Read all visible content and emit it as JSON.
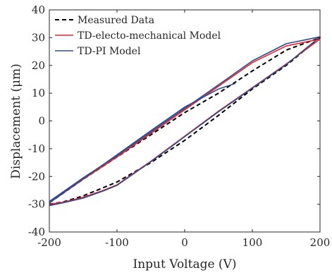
{
  "chart_data": {
    "type": "line",
    "xlabel": "Input Voltage (V)",
    "ylabel": "Displacement (μm)",
    "xlim": [
      -200,
      200
    ],
    "ylim": [
      -40,
      40
    ],
    "xticks": [
      "-200",
      "-100",
      "0",
      "100",
      "200"
    ],
    "yticks": [
      "40",
      "30",
      "20",
      "10",
      "0",
      "-10",
      "-20",
      "-30",
      "-40"
    ],
    "grid": false,
    "legend_position": "top-left",
    "series": [
      {
        "name": "Measured Data",
        "color": "#000000",
        "dash": true,
        "x": [
          -200,
          -180,
          -150,
          -120,
          -100,
          -50,
          0,
          50,
          100,
          150,
          200,
          200,
          150,
          100,
          50,
          0,
          -50,
          -100,
          -150,
          -200
        ],
        "y": [
          -30,
          -29.2,
          -27,
          -24,
          -22,
          -15,
          -7,
          2,
          11.5,
          20,
          30,
          30,
          25.5,
          18,
          10,
          3,
          -5,
          -13,
          -21,
          -29.5
        ]
      },
      {
        "name": "TD-electo-mechanical Model",
        "color": "#e8232b",
        "dash": false,
        "x": [
          -200,
          -180,
          -150,
          -120,
          -100,
          -50,
          0,
          50,
          100,
          150,
          200,
          200,
          150,
          100,
          50,
          0,
          -50,
          -100,
          -150,
          -200
        ],
        "y": [
          -30,
          -29.3,
          -27.5,
          -25,
          -23,
          -14.5,
          -5.5,
          3.5,
          12,
          20.5,
          29.5,
          29.5,
          27,
          21,
          12.5,
          4,
          -4.5,
          -13,
          -21,
          -29.5
        ]
      },
      {
        "name": "TD-PI Model",
        "color": "#2e4d8f",
        "dash": false,
        "x": [
          -200,
          -180,
          -150,
          -120,
          -100,
          -50,
          0,
          50,
          100,
          150,
          200,
          200,
          150,
          100,
          50,
          0,
          -50,
          -100,
          -150,
          -200
        ],
        "y": [
          -30.5,
          -29.5,
          -27.8,
          -25.2,
          -23.2,
          -14.7,
          -5.7,
          3.3,
          11.8,
          20.3,
          30.3,
          30.3,
          27.8,
          21.6,
          13,
          4.5,
          -4,
          -12.5,
          -20.5,
          -29
        ]
      },
      {
        "name": "",
        "color": "#2e4d8f",
        "dash": false,
        "x": [
          -200,
          -150,
          -100,
          -50,
          0,
          50,
          75
        ],
        "y": [
          -29.5,
          -20.8,
          -12.2,
          -3.5,
          5,
          11.5,
          13.5
        ]
      }
    ]
  }
}
